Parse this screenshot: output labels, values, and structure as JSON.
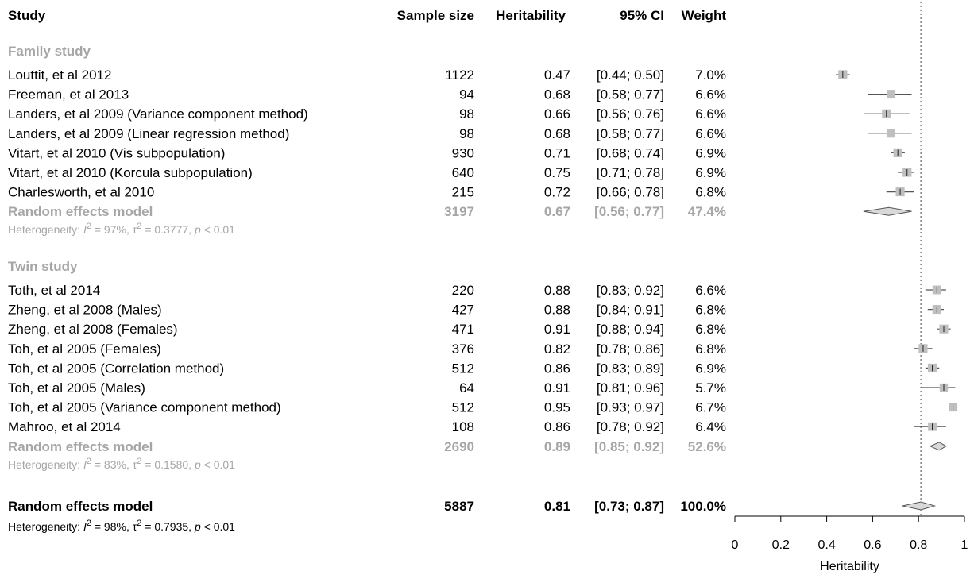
{
  "header": {
    "study": "Study",
    "sample_size": "Sample size",
    "heritability": "Heritability",
    "ci": "95% CI",
    "weight": "Weight"
  },
  "groups": [
    {
      "label": "Family study",
      "rows": [
        {
          "study": "Louttit, et al 2012",
          "n": "1122",
          "est": "0.47",
          "ci": "[0.44; 0.50]",
          "weight": "7.0%"
        },
        {
          "study": "Freeman, et al 2013",
          "n": "94",
          "est": "0.68",
          "ci": "[0.58; 0.77]",
          "weight": "6.6%"
        },
        {
          "study": "Landers, et al 2009 (Variance component method)",
          "n": "98",
          "est": "0.66",
          "ci": "[0.56; 0.76]",
          "weight": "6.6%"
        },
        {
          "study": "Landers, et al 2009 (Linear regression method)",
          "n": "98",
          "est": "0.68",
          "ci": "[0.58; 0.77]",
          "weight": "6.6%"
        },
        {
          "study": "Vitart, et al 2010 (Vis subpopulation)",
          "n": "930",
          "est": "0.71",
          "ci": "[0.68; 0.74]",
          "weight": "6.9%"
        },
        {
          "study": "Vitart, et al 2010 (Korcula subpopulation)",
          "n": "640",
          "est": "0.75",
          "ci": "[0.71; 0.78]",
          "weight": "6.9%"
        },
        {
          "study": "Charlesworth, et al 2010",
          "n": "215",
          "est": "0.72",
          "ci": "[0.66; 0.78]",
          "weight": "6.8%"
        }
      ],
      "summary": {
        "label": "Random effects model",
        "n": "3197",
        "est": "0.67",
        "ci": "[0.56; 0.77]",
        "weight": "47.4%"
      },
      "heterogeneity": {
        "prefix": "Heterogeneity: ",
        "i2": "I",
        "i2_rest": " = 97%, ",
        "tau": "τ",
        "tau_rest": " = 0.3777, ",
        "p": "p",
        "p_rest": " < 0.01"
      }
    },
    {
      "label": "Twin study",
      "rows": [
        {
          "study": "Toth, et al 2014",
          "n": "220",
          "est": "0.88",
          "ci": "[0.83; 0.92]",
          "weight": "6.6%"
        },
        {
          "study": "Zheng, et al 2008 (Males)",
          "n": "427",
          "est": "0.88",
          "ci": "[0.84; 0.91]",
          "weight": "6.8%"
        },
        {
          "study": "Zheng, et al 2008 (Females)",
          "n": "471",
          "est": "0.91",
          "ci": "[0.88; 0.94]",
          "weight": "6.8%"
        },
        {
          "study": "Toh, et al 2005 (Females)",
          "n": "376",
          "est": "0.82",
          "ci": "[0.78; 0.86]",
          "weight": "6.8%"
        },
        {
          "study": "Toh, et al 2005 (Correlation method)",
          "n": "512",
          "est": "0.86",
          "ci": "[0.83; 0.89]",
          "weight": "6.9%"
        },
        {
          "study": "Toh, et al 2005 (Males)",
          "n": "64",
          "est": "0.91",
          "ci": "[0.81; 0.96]",
          "weight": "5.7%"
        },
        {
          "study": "Toh, et al 2005 (Variance component method)",
          "n": "512",
          "est": "0.95",
          "ci": "[0.93; 0.97]",
          "weight": "6.7%"
        },
        {
          "study": "Mahroo, et al 2014",
          "n": "108",
          "est": "0.86",
          "ci": "[0.78; 0.92]",
          "weight": "6.4%"
        }
      ],
      "summary": {
        "label": "Random effects model",
        "n": "2690",
        "est": "0.89",
        "ci": "[0.85; 0.92]",
        "weight": "52.6%"
      },
      "heterogeneity": {
        "prefix": "Heterogeneity: ",
        "i2": "I",
        "i2_rest": " = 83%, ",
        "tau": "τ",
        "tau_rest": " = 0.1580, ",
        "p": "p",
        "p_rest": " < 0.01"
      }
    }
  ],
  "overall": {
    "label": "Random effects model",
    "n": "5887",
    "est": "0.81",
    "ci": "[0.73; 0.87]",
    "weight": "100.0%",
    "heterogeneity": {
      "prefix": "Heterogeneity: ",
      "i2": "I",
      "i2_rest": " = 98%, ",
      "tau": "τ",
      "tau_rest": " = 0.7935, ",
      "p": "p",
      "p_rest": " < 0.01"
    }
  },
  "axis": {
    "label": "Heritability",
    "ticks": [
      "0",
      "0.2",
      "0.4",
      "0.6",
      "0.8",
      "1"
    ]
  },
  "colors": {
    "group_text": "#a6a6a6",
    "box_fill": "#bfbfbf",
    "diamond_fill": "#d9d9d9",
    "line": "#555555",
    "text": "#000000"
  },
  "chart_data": {
    "type": "forest",
    "xlabel": "Heritability",
    "xlim": [
      0,
      1
    ],
    "xticks": [
      0,
      0.2,
      0.4,
      0.6,
      0.8,
      1
    ],
    "reference_line": 0.81,
    "studies": [
      {
        "group": "Family study",
        "study": "Louttit, et al 2012",
        "n": 1122,
        "est": 0.47,
        "lo": 0.44,
        "hi": 0.5,
        "weight": 7.0
      },
      {
        "group": "Family study",
        "study": "Freeman, et al 2013",
        "n": 94,
        "est": 0.68,
        "lo": 0.58,
        "hi": 0.77,
        "weight": 6.6
      },
      {
        "group": "Family study",
        "study": "Landers, et al 2009 (Variance component method)",
        "n": 98,
        "est": 0.66,
        "lo": 0.56,
        "hi": 0.76,
        "weight": 6.6
      },
      {
        "group": "Family study",
        "study": "Landers, et al 2009 (Linear regression method)",
        "n": 98,
        "est": 0.68,
        "lo": 0.58,
        "hi": 0.77,
        "weight": 6.6
      },
      {
        "group": "Family study",
        "study": "Vitart, et al 2010 (Vis subpopulation)",
        "n": 930,
        "est": 0.71,
        "lo": 0.68,
        "hi": 0.74,
        "weight": 6.9
      },
      {
        "group": "Family study",
        "study": "Vitart, et al 2010 (Korcula subpopulation)",
        "n": 640,
        "est": 0.75,
        "lo": 0.71,
        "hi": 0.78,
        "weight": 6.9
      },
      {
        "group": "Family study",
        "study": "Charlesworth, et al 2010",
        "n": 215,
        "est": 0.72,
        "lo": 0.66,
        "hi": 0.78,
        "weight": 6.8
      },
      {
        "group": "Twin study",
        "study": "Toth, et al 2014",
        "n": 220,
        "est": 0.88,
        "lo": 0.83,
        "hi": 0.92,
        "weight": 6.6
      },
      {
        "group": "Twin study",
        "study": "Zheng, et al 2008 (Males)",
        "n": 427,
        "est": 0.88,
        "lo": 0.84,
        "hi": 0.91,
        "weight": 6.8
      },
      {
        "group": "Twin study",
        "study": "Zheng, et al 2008 (Females)",
        "n": 471,
        "est": 0.91,
        "lo": 0.88,
        "hi": 0.94,
        "weight": 6.8
      },
      {
        "group": "Twin study",
        "study": "Toh, et al 2005 (Females)",
        "n": 376,
        "est": 0.82,
        "lo": 0.78,
        "hi": 0.86,
        "weight": 6.8
      },
      {
        "group": "Twin study",
        "study": "Toh, et al 2005 (Correlation method)",
        "n": 512,
        "est": 0.86,
        "lo": 0.83,
        "hi": 0.89,
        "weight": 6.9
      },
      {
        "group": "Twin study",
        "study": "Toh, et al 2005 (Males)",
        "n": 64,
        "est": 0.91,
        "lo": 0.81,
        "hi": 0.96,
        "weight": 5.7
      },
      {
        "group": "Twin study",
        "study": "Toh, et al 2005 (Variance component method)",
        "n": 512,
        "est": 0.95,
        "lo": 0.93,
        "hi": 0.97,
        "weight": 6.7
      },
      {
        "group": "Twin study",
        "study": "Mahroo, et al 2014",
        "n": 108,
        "est": 0.86,
        "lo": 0.78,
        "hi": 0.92,
        "weight": 6.4
      }
    ],
    "summaries": [
      {
        "group": "Family study",
        "est": 0.67,
        "lo": 0.56,
        "hi": 0.77,
        "weight": 47.4
      },
      {
        "group": "Twin study",
        "est": 0.89,
        "lo": 0.85,
        "hi": 0.92,
        "weight": 52.6
      },
      {
        "group": "Overall",
        "est": 0.81,
        "lo": 0.73,
        "hi": 0.87,
        "weight": 100.0
      }
    ]
  }
}
